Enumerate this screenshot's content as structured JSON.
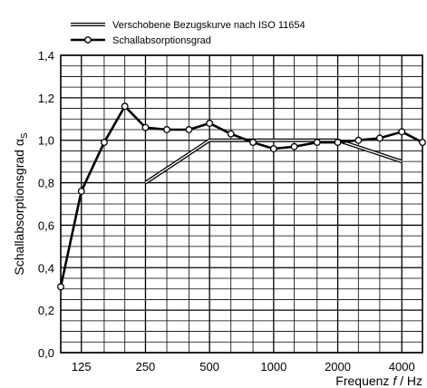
{
  "chart_data": {
    "type": "line",
    "x_scale": "log",
    "x_ticks": [
      125,
      250,
      500,
      1000,
      2000,
      4000
    ],
    "x_tick_labels": [
      "125",
      "250",
      "500",
      "1000",
      "2000",
      "4000"
    ],
    "y_ticks": [
      0.0,
      0.2,
      0.4,
      0.6,
      0.8,
      1.0,
      1.2,
      1.4
    ],
    "y_tick_labels": [
      "0,0",
      "0,2",
      "0,4",
      "0,6",
      "0,8",
      "1,0",
      "1,2",
      "1,4"
    ],
    "ylim": [
      0,
      1.4
    ],
    "xlim": [
      100,
      5000
    ],
    "xlabel_prefix": "Frequenz ",
    "xlabel_symbol": "f",
    "xlabel_suffix": " / Hz",
    "ylabel": "Schallabsorptionsgrad α",
    "ylabel_sub": "S",
    "grid": true,
    "legend_position": "top",
    "series": [
      {
        "name": "Schallabsorptionsgrad",
        "style": "line-markers",
        "color": "#000000",
        "x": [
          100,
          125,
          160,
          200,
          250,
          315,
          400,
          500,
          630,
          800,
          1000,
          1250,
          1600,
          2000,
          2500,
          3150,
          4000,
          5000
        ],
        "y": [
          0.31,
          0.76,
          0.99,
          1.16,
          1.06,
          1.05,
          1.05,
          1.08,
          1.03,
          0.99,
          0.96,
          0.97,
          0.99,
          0.99,
          1.0,
          1.01,
          1.04,
          0.99
        ]
      }
    ],
    "reference_curve": {
      "name": "Verschobene Bezugskurve nach ISO 11654",
      "style": "double-line",
      "color": "#000000",
      "x": [
        250,
        500,
        2000,
        4000
      ],
      "y": [
        0.8,
        1.0,
        1.0,
        0.9
      ]
    }
  }
}
